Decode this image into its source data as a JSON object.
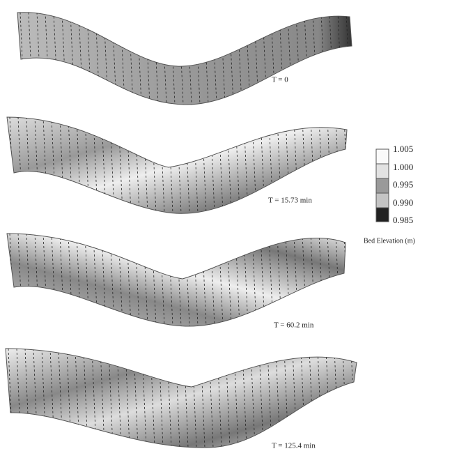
{
  "panels": [
    {
      "label": "T = 0"
    },
    {
      "label": "T = 15.73 min"
    },
    {
      "label": "T = 60.2 min"
    },
    {
      "label": "T = 125.4 min"
    }
  ],
  "colorbar": {
    "title": "Bed Elevation (m)",
    "ticks": [
      "1.005",
      "1.000",
      "0.995",
      "0.990",
      "0.985"
    ]
  }
}
